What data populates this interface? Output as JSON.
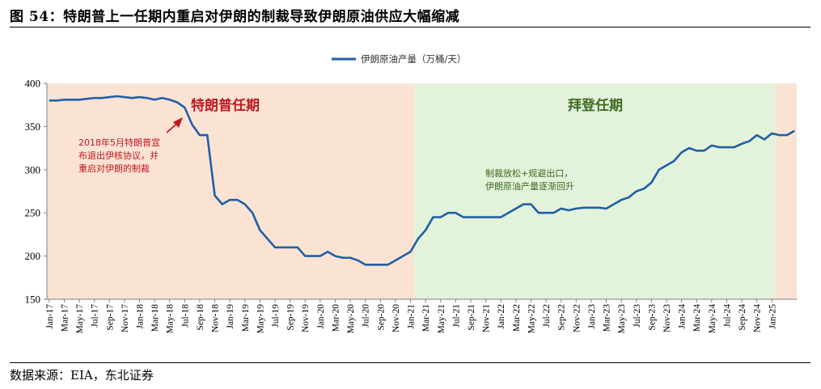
{
  "figure": {
    "title": "图 54：特朗普上一任期内重启对伊朗的制裁导致伊朗原油供应大幅缩减",
    "source": "数据来源：EIA，东北证券"
  },
  "colors": {
    "line": "#1f5fa6",
    "trump_band": "#fbe3d4",
    "biden_band": "#e3f2da",
    "trump_label": "#c0171f",
    "biden_label": "#3e6b23",
    "arrow": "#c0171f",
    "annotation_red": "#c0171f",
    "annotation_green": "#3e6b23"
  },
  "chart_data": {
    "type": "line",
    "title": "",
    "legend": [
      "伊朗原油产量（万桶/天）"
    ],
    "legend_position": "top-center",
    "xlabel": "",
    "ylabel": "",
    "ylim": [
      150,
      400
    ],
    "yticks": [
      150,
      200,
      250,
      300,
      350,
      400
    ],
    "xtick_labels": [
      "Jan-17",
      "Mar-17",
      "May-17",
      "Jul-17",
      "Sep-17",
      "Nov-17",
      "Jan-18",
      "Mar-18",
      "May-18",
      "Jul-18",
      "Sep-18",
      "Nov-18",
      "Jan-19",
      "Mar-19",
      "May-19",
      "Jul-19",
      "Sep-19",
      "Nov-19",
      "Jan-20",
      "Mar-20",
      "May-20",
      "Jul-20",
      "Sep-20",
      "Nov-20",
      "Jan-21",
      "Mar-21",
      "May-21",
      "Jul-21",
      "Sep-21",
      "Nov-21",
      "Jan-22",
      "Mar-22",
      "May-22",
      "Jul-22",
      "Sep-22",
      "Nov-22",
      "Jan-23",
      "Mar-23",
      "May-23",
      "Jul-23",
      "Sep-23",
      "Nov-23",
      "Jan-24",
      "Mar-24",
      "May-24",
      "Jul-24",
      "Sep-24",
      "Nov-24",
      "Jan-25"
    ],
    "series": [
      {
        "name": "伊朗原油产量（万桶/天）",
        "values": [
          380,
          380,
          381,
          381,
          381,
          382,
          383,
          383,
          384,
          385,
          384,
          383,
          384,
          383,
          381,
          383,
          381,
          378,
          372,
          352,
          340,
          340,
          270,
          260,
          265,
          265,
          260,
          250,
          230,
          220,
          210,
          210,
          210,
          210,
          200,
          200,
          200,
          205,
          200,
          198,
          198,
          195,
          190,
          190,
          190,
          190,
          195,
          200,
          205,
          220,
          230,
          245,
          245,
          250,
          250,
          245,
          245,
          245,
          245,
          245,
          245,
          250,
          255,
          260,
          260,
          250,
          250,
          250,
          255,
          253,
          255,
          256,
          256,
          256,
          255,
          260,
          265,
          268,
          275,
          278,
          285,
          300,
          305,
          310,
          320,
          325,
          322,
          322,
          328,
          326,
          326,
          326,
          330,
          333,
          340,
          335,
          342,
          340,
          340,
          345
        ]
      }
    ],
    "periods": [
      {
        "label": "特朗普任期",
        "from_month": 0,
        "to_month": 48
      },
      {
        "label": "拜登任期",
        "from_month": 48,
        "to_month": 96
      },
      {
        "label": "",
        "from_month": 96,
        "to_month": 100
      }
    ],
    "annotations": [
      {
        "text_lines": [
          "2018年5月特朗普宣",
          "布退出伊核协议，并",
          "重启对伊朗的制裁"
        ],
        "target_month": 16
      },
      {
        "text_lines": [
          "制裁放松+规避出口，",
          "伊朗原油产量逐渐回升"
        ]
      }
    ]
  }
}
